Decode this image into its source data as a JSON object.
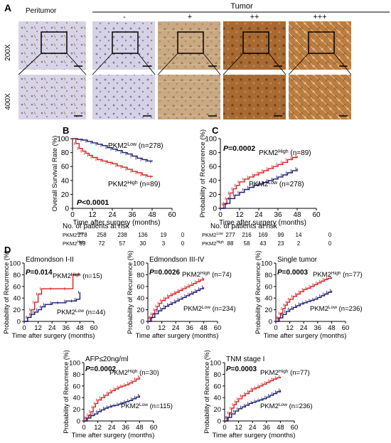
{
  "panel_labels": {
    "a": "A",
    "b": "B",
    "c": "C",
    "d": "D"
  },
  "panel_a": {
    "group_peritumor": "Peritumor",
    "group_tumor": "Tumor",
    "grades": [
      "-",
      "+",
      "++",
      "+++"
    ],
    "row_labels": [
      "200X",
      "400X"
    ],
    "tile_colors": [
      "#d7d3e6",
      "#d5d2e4",
      "#c7a57e",
      "#a6672e",
      "#b97a3c"
    ]
  },
  "at_risk": {
    "title": "No. of patients at risk",
    "rows": [
      {
        "group": "PKM2",
        "sup": "Low",
        "values": [
          "278",
          "258",
          "238",
          "136",
          "19",
          "0"
        ],
        "values_c": [
          "277",
          "216",
          "169",
          "99",
          "14",
          "0"
        ]
      },
      {
        "group": "PKM2",
        "sup": "High",
        "values": [
          "89",
          "72",
          "57",
          "30",
          "3",
          "0"
        ],
        "values_c": [
          "88",
          "58",
          "43",
          "23",
          "2",
          "0"
        ]
      }
    ]
  },
  "chart_data": [
    {
      "id": "B",
      "type": "line",
      "ylabel": "Overall Survival Rate (%)",
      "xlabel": "Time after surgery (months)",
      "xlim": [
        0,
        60
      ],
      "ylim": [
        0,
        100
      ],
      "xticks": [
        0,
        12,
        24,
        36,
        48,
        60
      ],
      "yticks": [
        0,
        20,
        40,
        60,
        80,
        100
      ],
      "pvalue": "P<0.0001",
      "series": [
        {
          "name": "PKM2Low (n=278)",
          "color": "#1a1a6e",
          "x": [
            0,
            3,
            6,
            9,
            12,
            15,
            18,
            21,
            24,
            27,
            30,
            33,
            36,
            39,
            42,
            45,
            48
          ],
          "y": [
            100,
            99,
            98,
            96,
            94,
            92,
            90,
            87,
            85,
            83,
            80,
            78,
            75,
            72,
            70,
            68,
            67
          ]
        },
        {
          "name": "PKM2High (n=89)",
          "color": "#d62020",
          "x": [
            0,
            2,
            4,
            6,
            8,
            10,
            12,
            15,
            18,
            21,
            24,
            27,
            30,
            33,
            36,
            39,
            42,
            45,
            48
          ],
          "y": [
            100,
            93,
            86,
            82,
            79,
            76,
            73,
            70,
            68,
            66,
            64,
            61,
            59,
            56,
            53,
            51,
            48,
            46,
            45
          ]
        }
      ]
    },
    {
      "id": "C",
      "type": "line",
      "ylabel": "Probability of Recurrence (%)",
      "xlabel": "Time after surgery (months)",
      "xlim": [
        0,
        60
      ],
      "ylim": [
        0,
        100
      ],
      "xticks": [
        0,
        12,
        24,
        36,
        48,
        60
      ],
      "yticks": [
        0,
        20,
        40,
        60,
        80,
        100
      ],
      "pvalue": "P=0.0002",
      "series": [
        {
          "name": "PKM2High (n=89)",
          "color": "#d62020",
          "x": [
            0,
            2,
            4,
            6,
            8,
            10,
            12,
            15,
            18,
            21,
            24,
            27,
            30,
            33,
            36,
            39,
            42,
            45,
            48
          ],
          "y": [
            0,
            6,
            14,
            22,
            28,
            33,
            38,
            42,
            45,
            48,
            51,
            54,
            57,
            60,
            63,
            66,
            70,
            73,
            75
          ]
        },
        {
          "name": "PKM2Low (n=278)",
          "color": "#1a1a6e",
          "x": [
            0,
            3,
            6,
            9,
            12,
            15,
            18,
            21,
            24,
            27,
            30,
            33,
            36,
            39,
            42,
            45,
            48
          ],
          "y": [
            0,
            7,
            14,
            19,
            23,
            27,
            30,
            33,
            35,
            37,
            40,
            42,
            45,
            48,
            51,
            54,
            57
          ]
        }
      ]
    },
    {
      "id": "D1",
      "type": "line",
      "subtitle": "Edmondson I-II",
      "ylabel": "Probability of Recurrence (%)",
      "xlabel": "Time after surgery (months)",
      "xlim": [
        0,
        60
      ],
      "ylim": [
        0,
        100
      ],
      "xticks": [
        0,
        12,
        24,
        36,
        48,
        60
      ],
      "yticks": [
        0,
        20,
        40,
        60,
        80,
        100
      ],
      "pvalue": "P=0.014",
      "series": [
        {
          "name": "PKM2High (n=15)",
          "color": "#d62020",
          "x": [
            0,
            3,
            6,
            9,
            12,
            15,
            24,
            36,
            42,
            45,
            48
          ],
          "y": [
            0,
            7,
            20,
            33,
            47,
            56,
            56,
            56,
            80,
            80,
            80
          ]
        },
        {
          "name": "PKM2Low (n=44)",
          "color": "#1a1a6e",
          "x": [
            0,
            3,
            6,
            9,
            12,
            15,
            18,
            24,
            30,
            36,
            42,
            45,
            48
          ],
          "y": [
            0,
            7,
            12,
            16,
            20,
            25,
            29,
            32,
            32,
            35,
            35,
            38,
            50
          ]
        }
      ]
    },
    {
      "id": "D2",
      "type": "line",
      "subtitle": "Edmondson III-IV",
      "ylabel": "Probability of Recurrence (%)",
      "xlabel": "Time after surgery (months)",
      "xlim": [
        0,
        60
      ],
      "ylim": [
        0,
        100
      ],
      "xticks": [
        0,
        12,
        24,
        36,
        48,
        60
      ],
      "yticks": [
        0,
        20,
        40,
        60,
        80,
        100
      ],
      "pvalue": "P=0.0026",
      "series": [
        {
          "name": "PKM2High (n=74)",
          "color": "#d62020",
          "x": [
            0,
            2,
            4,
            6,
            8,
            10,
            12,
            15,
            18,
            21,
            24,
            27,
            30,
            33,
            36,
            39,
            42,
            45,
            48
          ],
          "y": [
            0,
            6,
            13,
            20,
            26,
            31,
            36,
            40,
            44,
            47,
            50,
            53,
            56,
            59,
            62,
            65,
            68,
            71,
            74
          ]
        },
        {
          "name": "PKM2Low (n=234)",
          "color": "#1a1a6e",
          "x": [
            0,
            3,
            6,
            9,
            12,
            15,
            18,
            21,
            24,
            27,
            30,
            33,
            36,
            39,
            42,
            45,
            48
          ],
          "y": [
            0,
            7,
            13,
            18,
            22,
            26,
            29,
            32,
            35,
            38,
            41,
            44,
            47,
            50,
            53,
            56,
            59
          ]
        }
      ]
    },
    {
      "id": "D3",
      "type": "line",
      "subtitle": "Single tumor",
      "ylabel": "Probability of Recurrence (%)",
      "xlabel": "Time after surgery (months)",
      "xlim": [
        0,
        60
      ],
      "ylim": [
        0,
        100
      ],
      "xticks": [
        0,
        12,
        24,
        36,
        48,
        60
      ],
      "yticks": [
        0,
        20,
        40,
        60,
        80,
        100
      ],
      "pvalue": "P=0.0003",
      "series": [
        {
          "name": "PKM2High (n=77)",
          "color": "#d62020",
          "x": [
            0,
            2,
            4,
            6,
            8,
            10,
            12,
            15,
            18,
            21,
            24,
            27,
            30,
            33,
            36,
            39,
            42,
            45,
            48
          ],
          "y": [
            0,
            6,
            14,
            22,
            28,
            33,
            38,
            43,
            47,
            51,
            55,
            57,
            60,
            63,
            66,
            69,
            72,
            74,
            76
          ]
        },
        {
          "name": "PKM2Low (n=236)",
          "color": "#1a1a6e",
          "x": [
            0,
            3,
            6,
            9,
            12,
            15,
            18,
            21,
            24,
            27,
            30,
            33,
            36,
            39,
            42,
            45,
            48
          ],
          "y": [
            0,
            6,
            12,
            17,
            21,
            24,
            27,
            30,
            32,
            34,
            36,
            38,
            41,
            44,
            47,
            50,
            53
          ]
        }
      ]
    },
    {
      "id": "D4",
      "type": "line",
      "subtitle": "AFP≤20ng/ml",
      "ylabel": "Probability of Recurrence (%)",
      "xlabel": "Time after surgery (months)",
      "xlim": [
        0,
        60
      ],
      "ylim": [
        0,
        100
      ],
      "xticks": [
        0,
        12,
        24,
        36,
        48,
        60
      ],
      "yticks": [
        0,
        20,
        40,
        60,
        80,
        100
      ],
      "pvalue": "P=0.0002",
      "series": [
        {
          "name": "PKM2High (n=30)",
          "color": "#d62020",
          "x": [
            0,
            2,
            4,
            6,
            8,
            10,
            12,
            15,
            18,
            21,
            24,
            27,
            30,
            33,
            36,
            39,
            42,
            45,
            48
          ],
          "y": [
            0,
            5,
            10,
            16,
            24,
            30,
            36,
            40,
            44,
            48,
            52,
            55,
            58,
            60,
            62,
            65,
            68,
            72,
            76
          ]
        },
        {
          "name": "PKM2Low (n=115)",
          "color": "#1a1a6e",
          "x": [
            0,
            3,
            6,
            9,
            12,
            15,
            18,
            21,
            24,
            27,
            30,
            33,
            36,
            39,
            42,
            45,
            48
          ],
          "y": [
            0,
            5,
            9,
            12,
            16,
            19,
            22,
            24,
            26,
            27,
            29,
            31,
            33,
            35,
            38,
            41,
            44
          ]
        }
      ]
    },
    {
      "id": "D5",
      "type": "line",
      "subtitle": "TNM stage I",
      "ylabel": "Probability of Recurrence (%)",
      "xlabel": "Time after surgery (months)",
      "xlim": [
        0,
        60
      ],
      "ylim": [
        0,
        100
      ],
      "xticks": [
        0,
        12,
        24,
        36,
        48,
        60
      ],
      "yticks": [
        0,
        20,
        40,
        60,
        80,
        100
      ],
      "pvalue": "P=0.0003",
      "series": [
        {
          "name": "PKM2High (n=77)",
          "color": "#d62020",
          "x": [
            0,
            2,
            4,
            6,
            8,
            10,
            12,
            15,
            18,
            21,
            24,
            27,
            30,
            33,
            36,
            39,
            42,
            45,
            48
          ],
          "y": [
            0,
            6,
            14,
            22,
            28,
            33,
            38,
            43,
            47,
            51,
            55,
            57,
            60,
            63,
            66,
            69,
            72,
            74,
            76
          ]
        },
        {
          "name": "PKM2Low (n=236)",
          "color": "#1a1a6e",
          "x": [
            0,
            3,
            6,
            9,
            12,
            15,
            18,
            21,
            24,
            27,
            30,
            33,
            36,
            39,
            42,
            45,
            48
          ],
          "y": [
            0,
            6,
            12,
            17,
            21,
            24,
            27,
            30,
            32,
            34,
            36,
            38,
            41,
            44,
            47,
            50,
            53
          ]
        }
      ]
    }
  ]
}
